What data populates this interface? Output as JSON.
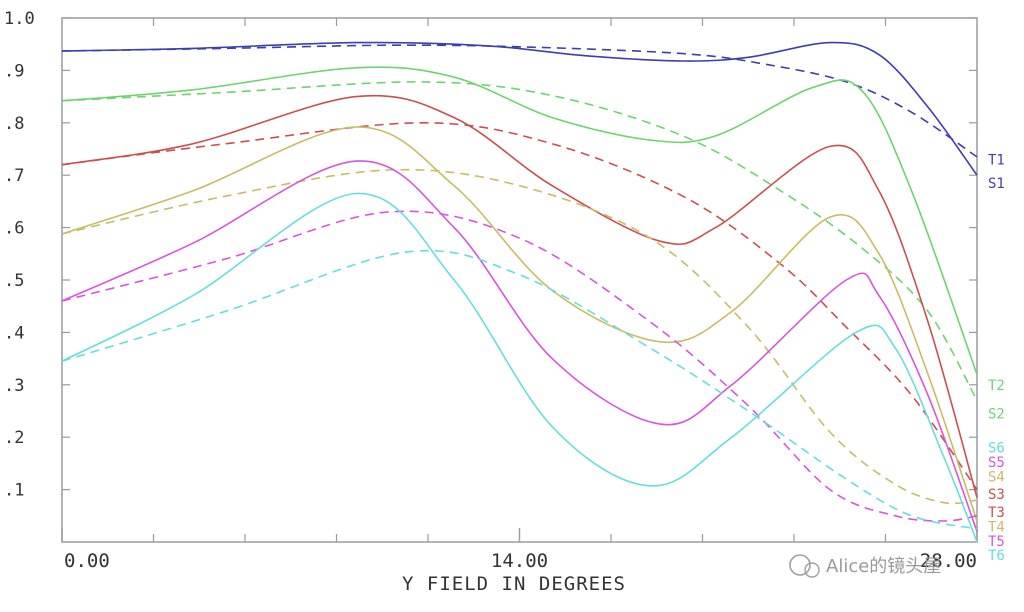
{
  "chart_data": {
    "type": "line",
    "xlabel": "Y FIELD IN DEGREES",
    "ylabel": "",
    "xlim": [
      0,
      28
    ],
    "ylim": [
      0,
      1.0
    ],
    "x_tick_labels": [
      {
        "value": 0,
        "label": "0.00"
      },
      {
        "value": 14,
        "label": "14.00"
      },
      {
        "value": 28,
        "label": "28.00"
      }
    ],
    "x_minor_ticks": [
      2.8,
      5.6,
      8.4,
      11.2,
      16.8,
      19.6,
      22.4,
      25.2
    ],
    "y_tick_labels": [
      {
        "value": 1.0,
        "label": "1.0"
      },
      {
        "value": 0.9,
        "label": ".9"
      },
      {
        "value": 0.8,
        "label": ".8"
      },
      {
        "value": 0.7,
        "label": ".7"
      },
      {
        "value": 0.6,
        "label": ".6"
      },
      {
        "value": 0.5,
        "label": ".5"
      },
      {
        "value": 0.4,
        "label": ".4"
      },
      {
        "value": 0.3,
        "label": ".3"
      },
      {
        "value": 0.2,
        "label": ".2"
      },
      {
        "value": 0.1,
        "label": ".1"
      }
    ],
    "grid": false,
    "series": [
      {
        "name": "T1",
        "color": "#3b3fb0",
        "style": "solid",
        "points": [
          [
            0,
            0.937
          ],
          [
            4,
            0.942
          ],
          [
            9,
            0.953
          ],
          [
            13,
            0.947
          ],
          [
            16,
            0.928
          ],
          [
            19,
            0.918
          ],
          [
            21,
            0.925
          ],
          [
            23.5,
            0.953
          ],
          [
            25,
            0.93
          ],
          [
            26.5,
            0.83
          ],
          [
            28,
            0.7
          ]
        ]
      },
      {
        "name": "S1",
        "color": "#3b3fb0",
        "style": "dashed",
        "points": [
          [
            0,
            0.937
          ],
          [
            5,
            0.942
          ],
          [
            10,
            0.948
          ],
          [
            14,
            0.945
          ],
          [
            19,
            0.932
          ],
          [
            21.5,
            0.912
          ],
          [
            24,
            0.878
          ],
          [
            26,
            0.82
          ],
          [
            28,
            0.735
          ]
        ]
      },
      {
        "name": "T2",
        "color": "#6fd46f",
        "style": "solid",
        "points": [
          [
            0,
            0.842
          ],
          [
            4,
            0.863
          ],
          [
            9,
            0.905
          ],
          [
            12,
            0.887
          ],
          [
            15,
            0.81
          ],
          [
            18,
            0.767
          ],
          [
            20,
            0.775
          ],
          [
            23,
            0.868
          ],
          [
            24.5,
            0.86
          ],
          [
            26,
            0.67
          ],
          [
            28,
            0.32
          ]
        ]
      },
      {
        "name": "S2",
        "color": "#6fd46f",
        "style": "dashed",
        "points": [
          [
            0,
            0.842
          ],
          [
            5,
            0.858
          ],
          [
            11,
            0.878
          ],
          [
            15,
            0.852
          ],
          [
            19,
            0.775
          ],
          [
            22,
            0.67
          ],
          [
            24.5,
            0.56
          ],
          [
            26.5,
            0.44
          ],
          [
            28,
            0.27
          ]
        ]
      },
      {
        "name": "T3",
        "color": "#cc4f4f",
        "style": "solid",
        "points": [
          [
            0,
            0.72
          ],
          [
            4,
            0.76
          ],
          [
            9,
            0.85
          ],
          [
            12,
            0.81
          ],
          [
            15,
            0.68
          ],
          [
            18.3,
            0.574
          ],
          [
            20,
            0.6
          ],
          [
            23.5,
            0.755
          ],
          [
            25,
            0.67
          ],
          [
            26.5,
            0.42
          ],
          [
            28,
            0.085
          ]
        ]
      },
      {
        "name": "S3",
        "color": "#cc4f4f",
        "style": "dashed",
        "points": [
          [
            0,
            0.72
          ],
          [
            5,
            0.76
          ],
          [
            11,
            0.8
          ],
          [
            15,
            0.76
          ],
          [
            19,
            0.66
          ],
          [
            22,
            0.53
          ],
          [
            24,
            0.41
          ],
          [
            26,
            0.28
          ],
          [
            28,
            0.1
          ]
        ]
      },
      {
        "name": "T4",
        "color": "#cbbb62",
        "style": "solid",
        "points": [
          [
            0,
            0.588
          ],
          [
            4,
            0.67
          ],
          [
            9,
            0.792
          ],
          [
            12,
            0.68
          ],
          [
            15,
            0.48
          ],
          [
            18.3,
            0.382
          ],
          [
            20.5,
            0.44
          ],
          [
            23.5,
            0.62
          ],
          [
            25,
            0.55
          ],
          [
            26.5,
            0.32
          ],
          [
            28,
            0.04
          ]
        ]
      },
      {
        "name": "S4",
        "color": "#cbbb62",
        "style": "dashed",
        "points": [
          [
            0,
            0.588
          ],
          [
            5,
            0.66
          ],
          [
            10,
            0.71
          ],
          [
            14,
            0.68
          ],
          [
            18,
            0.58
          ],
          [
            21,
            0.41
          ],
          [
            23.5,
            0.21
          ],
          [
            25.5,
            0.11
          ],
          [
            27,
            0.075
          ],
          [
            28,
            0.08
          ]
        ]
      },
      {
        "name": "T5",
        "color": "#d955d9",
        "style": "solid",
        "points": [
          [
            0,
            0.46
          ],
          [
            4,
            0.57
          ],
          [
            9,
            0.727
          ],
          [
            12,
            0.6
          ],
          [
            15,
            0.35
          ],
          [
            18.3,
            0.225
          ],
          [
            20.5,
            0.3
          ],
          [
            24,
            0.5
          ],
          [
            25,
            0.47
          ],
          [
            26.5,
            0.28
          ],
          [
            28,
            0.02
          ]
        ]
      },
      {
        "name": "S5",
        "color": "#d955d9",
        "style": "dashed",
        "points": [
          [
            0,
            0.46
          ],
          [
            5,
            0.54
          ],
          [
            10,
            0.63
          ],
          [
            14,
            0.58
          ],
          [
            18,
            0.42
          ],
          [
            21,
            0.26
          ],
          [
            23.5,
            0.1
          ],
          [
            25.5,
            0.05
          ],
          [
            27,
            0.04
          ],
          [
            28,
            0.05
          ]
        ]
      },
      {
        "name": "T6",
        "color": "#66dde0",
        "style": "solid",
        "points": [
          [
            0,
            0.345
          ],
          [
            4,
            0.47
          ],
          [
            9,
            0.665
          ],
          [
            12,
            0.5
          ],
          [
            15,
            0.22
          ],
          [
            18,
            0.107
          ],
          [
            20.5,
            0.2
          ],
          [
            24.3,
            0.4
          ],
          [
            25.5,
            0.37
          ],
          [
            27,
            0.16
          ],
          [
            28,
            0.0
          ]
        ]
      },
      {
        "name": "S6",
        "color": "#66dde0",
        "style": "dashed",
        "points": [
          [
            0,
            0.345
          ],
          [
            5,
            0.44
          ],
          [
            10.5,
            0.553
          ],
          [
            14,
            0.51
          ],
          [
            18,
            0.37
          ],
          [
            21,
            0.25
          ],
          [
            24,
            0.12
          ],
          [
            26,
            0.05
          ],
          [
            28,
            0.025
          ]
        ]
      }
    ],
    "right_labels": [
      {
        "text": "T1",
        "y": 0.73,
        "color": "#3b3fb0"
      },
      {
        "text": "S1",
        "y": 0.685,
        "color": "#3b3fb0"
      },
      {
        "text": "T2",
        "y": 0.3,
        "color": "#6fd46f"
      },
      {
        "text": "S2",
        "y": 0.245,
        "color": "#6fd46f"
      },
      {
        "text": "S6",
        "y": 0.18,
        "color": "#66dde0"
      },
      {
        "text": "S5",
        "y": 0.153,
        "color": "#d955d9"
      },
      {
        "text": "S4",
        "y": 0.125,
        "color": "#cbbb62"
      },
      {
        "text": "S3",
        "y": 0.092,
        "color": "#cc4f4f"
      },
      {
        "text": "T3",
        "y": 0.057,
        "color": "#cc4f4f"
      },
      {
        "text": "T4",
        "y": 0.03,
        "color": "#cbbb62"
      },
      {
        "text": "T5",
        "y": 0.002,
        "color": "#d955d9"
      },
      {
        "text": "T6",
        "y": -0.025,
        "color": "#66dde0"
      }
    ],
    "watermark": "Alice的镜头屋"
  }
}
